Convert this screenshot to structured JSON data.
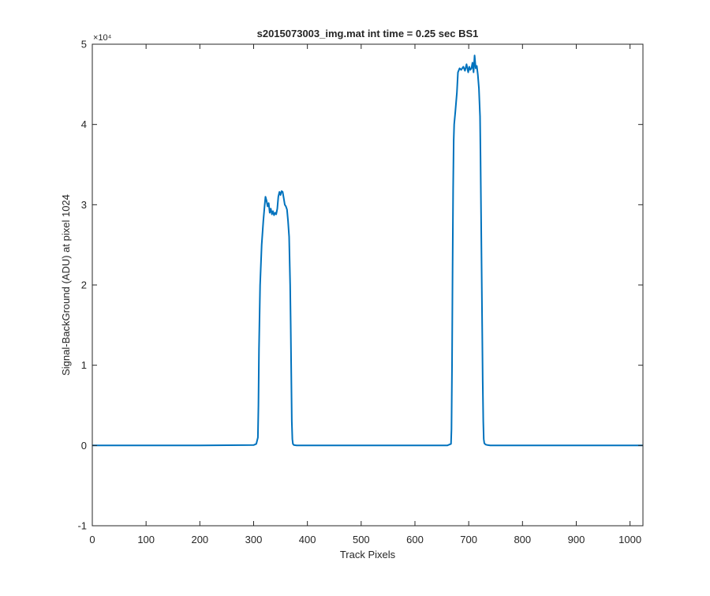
{
  "chart_data": {
    "type": "line",
    "title": "s2015073003_img.mat int time = 0.25 sec   BS1",
    "xlabel": "Track Pixels",
    "ylabel": "Signal-BackGround (ADU) at pixel 1024",
    "xlim": [
      0,
      1024
    ],
    "ylim": [
      -10000,
      50000
    ],
    "x_ticks": [
      0,
      100,
      200,
      300,
      400,
      500,
      600,
      700,
      800,
      900,
      1000
    ],
    "x_tick_labels": [
      "0",
      "100",
      "200",
      "300",
      "400",
      "500",
      "600",
      "700",
      "800",
      "900",
      "1000"
    ],
    "y_ticks": [
      -10000,
      0,
      10000,
      20000,
      30000,
      40000,
      50000
    ],
    "y_tick_labels": [
      "-1",
      "0",
      "1",
      "2",
      "3",
      "4",
      "5"
    ],
    "y_exponent_label": "×10⁴",
    "grid": false,
    "box": true,
    "line_color": "#0072BD",
    "series": [
      {
        "x": [
          0,
          100,
          200,
          300,
          305,
          308,
          309,
          310,
          312,
          315,
          318,
          320,
          322,
          324,
          326,
          328,
          330,
          332,
          334,
          336,
          338,
          340,
          342,
          344,
          346,
          348,
          350,
          352,
          354,
          356,
          358,
          360,
          362,
          364,
          366,
          368,
          369,
          370,
          371,
          372,
          373,
          375,
          380,
          400,
          500,
          600,
          660,
          667,
          668,
          669,
          670,
          671,
          672,
          673,
          675,
          678,
          680,
          683,
          686,
          690,
          693,
          696,
          699,
          701,
          703,
          705,
          707,
          709,
          711,
          713,
          715,
          717,
          719,
          721,
          722,
          723,
          724,
          725,
          726,
          727,
          728,
          729,
          730,
          732,
          735,
          740,
          800,
          900,
          1024
        ],
        "y": [
          0,
          0,
          0,
          50,
          200,
          1000,
          5000,
          12000,
          20000,
          25000,
          28000,
          29500,
          31000,
          30500,
          29800,
          30200,
          29000,
          29500,
          28800,
          29200,
          28700,
          29000,
          28800,
          29500,
          31000,
          31600,
          31200,
          31700,
          31600,
          30800,
          30000,
          29800,
          29400,
          28000,
          26000,
          20000,
          15000,
          9000,
          3000,
          800,
          200,
          50,
          0,
          0,
          0,
          0,
          0,
          200,
          2000,
          10000,
          22000,
          32000,
          38000,
          40000,
          41500,
          44000,
          46500,
          47000,
          46800,
          47200,
          46700,
          47500,
          46500,
          47200,
          46800,
          47000,
          47700,
          46500,
          48600,
          47000,
          47300,
          46200,
          44500,
          41000,
          36000,
          29000,
          22000,
          15000,
          8000,
          3000,
          800,
          300,
          200,
          100,
          50,
          0,
          0,
          0,
          0
        ]
      }
    ]
  }
}
